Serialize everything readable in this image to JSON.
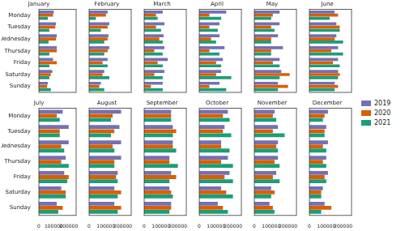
{
  "chart_data": [
    {
      "type": "bar",
      "title": "January",
      "orientation": "horizontal",
      "grid": false,
      "tick_labels": "y",
      "categories": [
        "Monday",
        "Tuesday",
        "Wednesday",
        "Thursday",
        "Friday",
        "Saturday",
        "Sunday"
      ],
      "xlim": [
        0,
        250000
      ],
      "xticks": [
        0,
        100000,
        200000
      ],
      "series": [
        {
          "name": "2019",
          "color": "#7570b3",
          "values": [
            100000,
            115000,
            120000,
            120000,
            95000,
            90000,
            60000
          ]
        },
        {
          "name": "2020",
          "color": "#d95f02",
          "values": [
            95000,
            110000,
            115000,
            120000,
            120000,
            80000,
            55000
          ]
        },
        {
          "name": "2021",
          "color": "#1b9e77",
          "values": [
            60000,
            70000,
            65000,
            70000,
            70000,
            70000,
            80000
          ]
        }
      ]
    },
    {
      "type": "bar",
      "title": "February",
      "orientation": "horizontal",
      "grid": false,
      "tick_labels": false,
      "categories": [
        "Monday",
        "Tuesday",
        "Wednesday",
        "Thursday",
        "Friday",
        "Saturday",
        "Sunday"
      ],
      "xlim": [
        0,
        250000
      ],
      "xticks": [
        0,
        100000,
        200000
      ],
      "series": [
        {
          "name": "2019",
          "color": "#7570b3",
          "values": [
            110000,
            120000,
            115000,
            120000,
            110000,
            90000,
            70000
          ]
        },
        {
          "name": "2020",
          "color": "#d95f02",
          "values": [
            100000,
            110000,
            110000,
            110000,
            80000,
            80000,
            60000
          ]
        },
        {
          "name": "2021",
          "color": "#1b9e77",
          "values": [
            40000,
            70000,
            90000,
            90000,
            110000,
            120000,
            90000
          ]
        }
      ]
    },
    {
      "type": "bar",
      "title": "March",
      "orientation": "horizontal",
      "grid": false,
      "tick_labels": false,
      "categories": [
        "Monday",
        "Tuesday",
        "Wednesday",
        "Thursday",
        "Friday",
        "Saturday",
        "Sunday"
      ],
      "xlim": [
        0,
        250000
      ],
      "xticks": [
        0,
        100000,
        200000
      ],
      "series": [
        {
          "name": "2019",
          "color": "#7570b3",
          "values": [
            110000,
            120000,
            115000,
            120000,
            140000,
            120000,
            110000
          ]
        },
        {
          "name": "2020",
          "color": "#d95f02",
          "values": [
            70000,
            70000,
            90000,
            60000,
            80000,
            60000,
            40000
          ]
        },
        {
          "name": "2021",
          "color": "#1b9e77",
          "values": [
            80000,
            100000,
            110000,
            110000,
            110000,
            110000,
            110000
          ]
        }
      ]
    },
    {
      "type": "bar",
      "title": "April",
      "orientation": "horizontal",
      "grid": false,
      "tick_labels": false,
      "categories": [
        "Monday",
        "Tuesday",
        "Wednesday",
        "Thursday",
        "Friday",
        "Saturday",
        "Sunday"
      ],
      "xlim": [
        0,
        250000
      ],
      "xticks": [
        0,
        100000,
        200000
      ],
      "series": [
        {
          "name": "2019",
          "color": "#7570b3",
          "values": [
            160000,
            120000,
            120000,
            150000,
            140000,
            130000,
            120000
          ]
        },
        {
          "name": "2020",
          "color": "#d95f02",
          "values": [
            60000,
            60000,
            70000,
            60000,
            100000,
            100000,
            60000
          ]
        },
        {
          "name": "2021",
          "color": "#1b9e77",
          "values": [
            130000,
            110000,
            100000,
            120000,
            130000,
            190000,
            160000
          ]
        }
      ]
    },
    {
      "type": "bar",
      "title": "May",
      "orientation": "horizontal",
      "grid": false,
      "tick_labels": false,
      "categories": [
        "Monday",
        "Tuesday",
        "Wednesday",
        "Thursday",
        "Friday",
        "Saturday",
        "Sunday"
      ],
      "xlim": [
        0,
        250000
      ],
      "xticks": [
        0,
        100000,
        200000
      ],
      "series": [
        {
          "name": "2019",
          "color": "#7570b3",
          "values": [
            150000,
            150000,
            140000,
            170000,
            150000,
            160000,
            140000
          ]
        },
        {
          "name": "2020",
          "color": "#d95f02",
          "values": [
            110000,
            100000,
            100000,
            100000,
            110000,
            210000,
            200000
          ]
        },
        {
          "name": "2021",
          "color": "#1b9e77",
          "values": [
            100000,
            120000,
            100000,
            100000,
            150000,
            150000,
            140000
          ]
        }
      ]
    },
    {
      "type": "bar",
      "title": "June",
      "orientation": "horizontal",
      "grid": false,
      "tick_labels": false,
      "legend": "right",
      "categories": [
        "Monday",
        "Tuesday",
        "Wednesday",
        "Thursday",
        "Friday",
        "Saturday",
        "Sunday"
      ],
      "xlim": [
        0,
        250000
      ],
      "xticks": [
        0,
        100000,
        200000
      ],
      "series": [
        {
          "name": "2019",
          "color": "#7570b3",
          "values": [
            150000,
            160000,
            160000,
            170000,
            170000,
            170000,
            150000
          ]
        },
        {
          "name": "2020",
          "color": "#d95f02",
          "values": [
            170000,
            180000,
            150000,
            130000,
            140000,
            180000,
            170000
          ]
        },
        {
          "name": "2021",
          "color": "#1b9e77",
          "values": [
            120000,
            180000,
            200000,
            200000,
            180000,
            170000,
            150000
          ]
        }
      ]
    },
    {
      "type": "bar",
      "title": "July",
      "orientation": "horizontal",
      "grid": false,
      "tick_labels": true,
      "categories": [
        "Monday",
        "Tuesday",
        "Wednesday",
        "Thursday",
        "Friday",
        "Saturday",
        "Sunday"
      ],
      "xlim": [
        0,
        250000
      ],
      "xticks": [
        0,
        100000,
        200000
      ],
      "series": [
        {
          "name": "2019",
          "color": "#7570b3",
          "values": [
            160000,
            200000,
            200000,
            180000,
            170000,
            150000,
            120000
          ]
        },
        {
          "name": "2020",
          "color": "#d95f02",
          "values": [
            120000,
            140000,
            150000,
            150000,
            200000,
            180000,
            160000
          ]
        },
        {
          "name": "2021",
          "color": "#1b9e77",
          "values": [
            140000,
            140000,
            170000,
            200000,
            190000,
            180000,
            130000
          ]
        }
      ]
    },
    {
      "type": "bar",
      "title": "August",
      "orientation": "horizontal",
      "grid": false,
      "tick_labels": "x",
      "categories": [
        "Monday",
        "Tuesday",
        "Wednesday",
        "Thursday",
        "Friday",
        "Saturday",
        "Sunday"
      ],
      "xlim": [
        0,
        250000
      ],
      "xticks": [
        0,
        100000,
        200000
      ],
      "series": [
        {
          "name": "2019",
          "color": "#7570b3",
          "values": [
            190000,
            180000,
            190000,
            190000,
            170000,
            150000,
            150000
          ]
        },
        {
          "name": "2020",
          "color": "#d95f02",
          "values": [
            140000,
            150000,
            140000,
            150000,
            160000,
            190000,
            190000
          ]
        },
        {
          "name": "2021",
          "color": "#1b9e77",
          "values": [
            130000,
            130000,
            150000,
            150000,
            170000,
            170000,
            170000
          ]
        }
      ]
    },
    {
      "type": "bar",
      "title": "September",
      "orientation": "horizontal",
      "grid": false,
      "tick_labels": "x",
      "categories": [
        "Monday",
        "Tuesday",
        "Wednesday",
        "Thursday",
        "Friday",
        "Saturday",
        "Sunday"
      ],
      "xlim": [
        0,
        250000
      ],
      "xticks": [
        0,
        100000,
        200000
      ],
      "series": [
        {
          "name": "2019",
          "color": "#7570b3",
          "values": [
            160000,
            170000,
            170000,
            150000,
            160000,
            150000,
            160000
          ]
        },
        {
          "name": "2020",
          "color": "#d95f02",
          "values": [
            160000,
            190000,
            170000,
            150000,
            190000,
            160000,
            160000
          ]
        },
        {
          "name": "2021",
          "color": "#1b9e77",
          "values": [
            160000,
            170000,
            190000,
            200000,
            150000,
            170000,
            150000
          ]
        }
      ]
    },
    {
      "type": "bar",
      "title": "October",
      "orientation": "horizontal",
      "grid": false,
      "tick_labels": "x",
      "categories": [
        "Monday",
        "Tuesday",
        "Wednesday",
        "Thursday",
        "Friday",
        "Saturday",
        "Sunday"
      ],
      "xlim": [
        0,
        250000
      ],
      "xticks": [
        0,
        100000,
        200000
      ],
      "series": [
        {
          "name": "2019",
          "color": "#7570b3",
          "values": [
            170000,
            150000,
            130000,
            170000,
            180000,
            130000,
            110000
          ]
        },
        {
          "name": "2020",
          "color": "#d95f02",
          "values": [
            140000,
            140000,
            130000,
            130000,
            150000,
            160000,
            140000
          ]
        },
        {
          "name": "2021",
          "color": "#1b9e77",
          "values": [
            180000,
            190000,
            180000,
            200000,
            200000,
            200000,
            170000
          ]
        }
      ]
    },
    {
      "type": "bar",
      "title": "November",
      "orientation": "horizontal",
      "grid": false,
      "tick_labels": "x",
      "categories": [
        "Monday",
        "Tuesday",
        "Wednesday",
        "Thursday",
        "Friday",
        "Saturday",
        "Sunday"
      ],
      "xlim": [
        0,
        250000
      ],
      "xticks": [
        0,
        100000,
        200000
      ],
      "series": [
        {
          "name": "2019",
          "color": "#7570b3",
          "values": [
            120000,
            140000,
            140000,
            140000,
            130000,
            100000,
            90000
          ]
        },
        {
          "name": "2020",
          "color": "#d95f02",
          "values": [
            110000,
            110000,
            130000,
            120000,
            110000,
            120000,
            110000
          ]
        },
        {
          "name": "2021",
          "color": "#1b9e77",
          "values": [
            130000,
            180000,
            140000,
            150000,
            150000,
            100000,
            120000
          ]
        }
      ]
    },
    {
      "type": "bar",
      "title": "December",
      "orientation": "horizontal",
      "grid": false,
      "tick_labels": "x",
      "categories": [
        "Monday",
        "Tuesday",
        "Wednesday",
        "Thursday",
        "Friday",
        "Saturday",
        "Sunday"
      ],
      "xlim": [
        0,
        250000
      ],
      "xticks": [
        0,
        100000,
        200000
      ],
      "series": [
        {
          "name": "2019",
          "color": "#7570b3",
          "values": [
            110000,
            100000,
            110000,
            100000,
            110000,
            80000,
            90000
          ]
        },
        {
          "name": "2020",
          "color": "#d95f02",
          "values": [
            90000,
            90000,
            80000,
            80000,
            90000,
            70000,
            130000
          ]
        },
        {
          "name": "2021",
          "color": "#1b9e77",
          "values": [
            80000,
            90000,
            100000,
            100000,
            100000,
            70000,
            70000
          ]
        }
      ]
    }
  ]
}
